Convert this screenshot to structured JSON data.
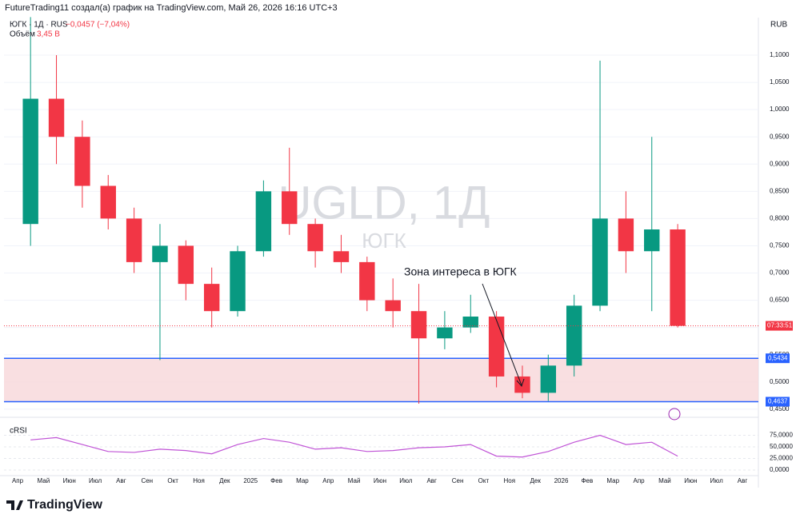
{
  "chart_data": {
    "type": "candlestick",
    "header": "FutureTrading11 создал(а) график на TradingView.com, Май 26, 2026 16:16 UTC+3",
    "symbol_legend": "ЮГК · 1Д · RUS",
    "change": "−0,0457 (−7,04%)",
    "volume_label": "Объём",
    "volume_value": "3,45 B",
    "watermark": "UGLD, 1Д",
    "watermark_sub": "ЮГК",
    "annotation": "Зона интереса в ЮГК",
    "currency": "RUB",
    "countdown": "07:33:51",
    "brand": "TradingView",
    "up_color": "#089981",
    "down_color": "#f23645",
    "categories": [
      "Апр",
      "Май",
      "Июн",
      "Июл",
      "Авг",
      "Сен",
      "Окт",
      "Ноя",
      "Дек",
      "2025",
      "Фев",
      "Мар",
      "Апр",
      "Май",
      "Июн",
      "Июл",
      "Авг",
      "Сен",
      "Окт",
      "Ноя",
      "Дек",
      "2026",
      "Фев",
      "Мар",
      "Апр",
      "Май",
      "Июн",
      "Июл",
      "Авг"
    ],
    "open": [
      0.79,
      1.02,
      0.95,
      0.86,
      0.8,
      0.72,
      0.75,
      0.68,
      0.63,
      0.74,
      0.85,
      0.79,
      0.74,
      0.72,
      0.65,
      0.63,
      0.58,
      0.6,
      0.62,
      0.51,
      0.48,
      0.53,
      0.64,
      0.8,
      0.74,
      0.78,
      null,
      null,
      null
    ],
    "high": [
      1.17,
      1.1,
      0.98,
      0.88,
      0.82,
      0.79,
      0.76,
      0.71,
      0.75,
      0.87,
      0.93,
      0.8,
      0.77,
      0.73,
      0.69,
      0.68,
      0.63,
      0.66,
      0.63,
      0.53,
      0.55,
      0.66,
      1.09,
      0.85,
      0.95,
      0.79,
      null,
      null,
      null
    ],
    "low": [
      0.75,
      0.9,
      0.82,
      0.78,
      0.7,
      0.54,
      0.65,
      0.6,
      0.62,
      0.73,
      0.77,
      0.71,
      0.7,
      0.63,
      0.6,
      0.46,
      0.56,
      0.59,
      0.49,
      0.47,
      0.465,
      0.51,
      0.63,
      0.7,
      0.63,
      0.6,
      null,
      null,
      null
    ],
    "close": [
      1.02,
      0.95,
      0.86,
      0.8,
      0.72,
      0.75,
      0.68,
      0.63,
      0.74,
      0.85,
      0.79,
      0.74,
      0.72,
      0.65,
      0.63,
      0.58,
      0.6,
      0.62,
      0.51,
      0.48,
      0.53,
      0.64,
      0.8,
      0.74,
      0.78,
      0.603,
      null,
      null,
      null
    ],
    "ylim": [
      0.438,
      1.169
    ],
    "yticks": [
      {
        "value": 0.45,
        "label": "0,4500"
      },
      {
        "value": 0.5,
        "label": "0,5000"
      },
      {
        "value": 0.55,
        "label": "0,5500"
      },
      {
        "value": 0.6,
        "label": "0,6000"
      },
      {
        "value": 0.65,
        "label": "0,6500"
      },
      {
        "value": 0.7,
        "label": "0,7000"
      },
      {
        "value": 0.75,
        "label": "0,7500"
      },
      {
        "value": 0.8,
        "label": "0,8000"
      },
      {
        "value": 0.85,
        "label": "0,8500"
      },
      {
        "value": 0.9,
        "label": "0,9000"
      },
      {
        "value": 0.95,
        "label": "0,9500"
      },
      {
        "value": 1.0,
        "label": "1,0000"
      },
      {
        "value": 1.05,
        "label": "1,0500"
      },
      {
        "value": 1.1,
        "label": "1,1000"
      }
    ],
    "zone": {
      "color": "#f8d7da",
      "line_color": "#2962ff",
      "low": {
        "value": 0.4637,
        "label": "0,4637"
      },
      "high": {
        "value": 0.5434,
        "label": "0,5434"
      }
    },
    "indicator": {
      "name": "cRSI",
      "color": "#c054d6",
      "values": [
        65,
        70,
        55,
        40,
        38,
        45,
        42,
        35,
        55,
        68,
        60,
        45,
        48,
        40,
        42,
        48,
        50,
        55,
        30,
        28,
        40,
        60,
        75,
        55,
        60,
        30,
        null,
        null,
        null
      ],
      "ylim": [
        0,
        100
      ],
      "yticks": [
        {
          "value": 0,
          "label": "0,0000"
        },
        {
          "value": 25,
          "label": "25,0000"
        },
        {
          "value": 50,
          "label": "50,0000"
        },
        {
          "value": 75,
          "label": "75,0000"
        }
      ]
    }
  }
}
